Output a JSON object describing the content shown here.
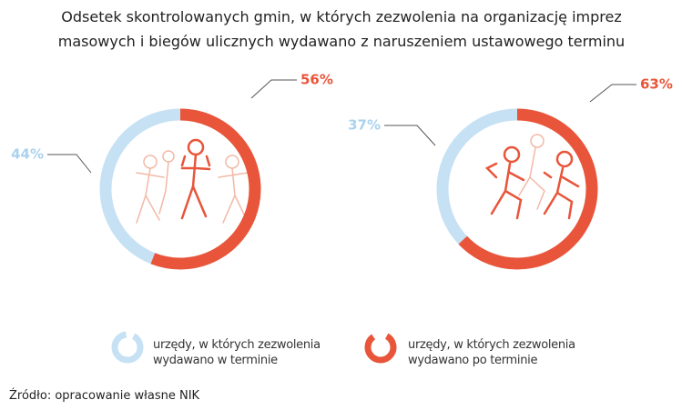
{
  "title": "Odsetek skontrolowanych gmin, w których zezwolenia na organizację imprez masowych i biegów ulicznych wydawano z naruszeniem ustawowego terminu",
  "chart_data": [
    {
      "type": "pie",
      "donut": true,
      "values": [
        44,
        56
      ],
      "value_labels": [
        "44%",
        "56%"
      ],
      "colors": [
        "#c6e1f4",
        "#e8553a"
      ]
    },
    {
      "type": "pie",
      "donut": true,
      "values": [
        37,
        63
      ],
      "value_labels": [
        "37%",
        "63%"
      ],
      "colors": [
        "#c6e1f4",
        "#e8553a"
      ]
    }
  ],
  "legend": [
    "urzędy, w których zezwolenia wydawano w terminie",
    "urzędy, w których zezwolenia wydawano po terminie"
  ],
  "source": "Źródło: opracowanie własne NIK"
}
